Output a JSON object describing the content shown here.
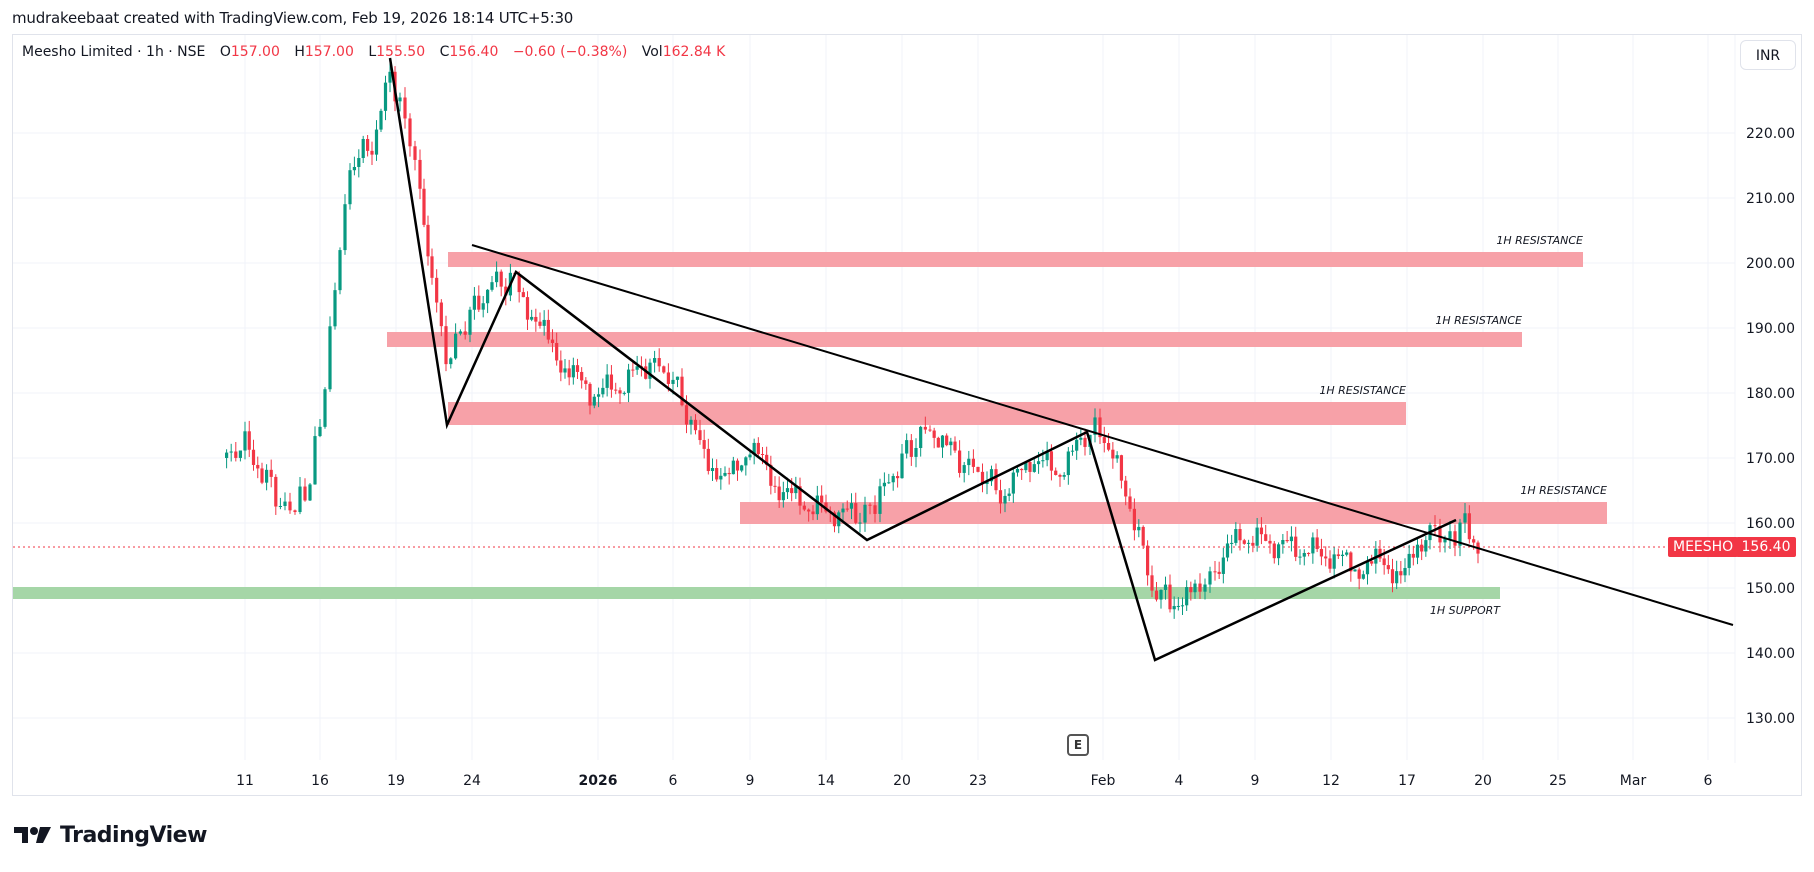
{
  "credit": "mudrakeebaat created with TradingView.com, Feb 19, 2026 18:14 UTC+5:30",
  "legend": {
    "symbol": "Meesho Limited · 1h · NSE",
    "open_label": "O",
    "open": "157.00",
    "high_label": "H",
    "high": "157.00",
    "low_label": "L",
    "low": "155.50",
    "close_label": "C",
    "close": "156.40",
    "change": "−0.60 (−0.38%)",
    "vol_label": "Vol",
    "vol": "162.84 K"
  },
  "currency": "INR",
  "price_tag": {
    "symbol": "MEESHO",
    "price": "156.40",
    "color": "#f23645"
  },
  "event_badge": "E",
  "logo": {
    "text": "TradingView"
  },
  "colors": {
    "up": "#089981",
    "down": "#f23645",
    "resistance": "#f7a1a8",
    "support": "#a5d6a7",
    "trendline": "#000000"
  },
  "zone_labels": {
    "r1": "1H RESISTANCE",
    "r2": "1H RESISTANCE",
    "r3": "1H RESISTANCE",
    "r4": "1H RESISTANCE",
    "s1": "1H SUPPORT"
  },
  "chart_data": {
    "type": "candlestick",
    "title": "Meesho Limited · 1h · NSE",
    "xlabel": "",
    "ylabel": "INR",
    "ylim": [
      124,
      232
    ],
    "grid": true,
    "x_ticks": [
      "11",
      "16",
      "19",
      "24",
      "2026",
      "6",
      "9",
      "14",
      "20",
      "23",
      "Feb",
      "4",
      "9",
      "12",
      "17",
      "20",
      "25",
      "Mar",
      "6"
    ],
    "y_ticks": [
      "220.00",
      "210.00",
      "200.00",
      "190.00",
      "180.00",
      "170.00",
      "160.00",
      "150.00",
      "140.00",
      "130.00"
    ],
    "last_price": 156.4,
    "ohlc_last": {
      "open": 157.0,
      "high": 157.0,
      "low": 155.5,
      "close": 156.4,
      "change": -0.6,
      "change_pct": -0.38,
      "volume": "162.84K"
    },
    "zones": [
      {
        "label": "1H RESISTANCE",
        "type": "resistance",
        "from": 199.2,
        "to": 201.5
      },
      {
        "label": "1H RESISTANCE",
        "type": "resistance",
        "from": 187.8,
        "to": 190.0
      },
      {
        "label": "1H RESISTANCE",
        "type": "resistance",
        "from": 175.6,
        "to": 178.6
      },
      {
        "label": "1H RESISTANCE",
        "type": "resistance",
        "from": 159.6,
        "to": 163.0
      },
      {
        "label": "1H SUPPORT",
        "type": "support",
        "from": 148.2,
        "to": 150.0
      }
    ],
    "trendlines": [
      {
        "name": "zigzag",
        "points": [
          [
            "Dec 19",
            230
          ],
          [
            "Dec 22",
            175
          ],
          [
            "Dec 26",
            198
          ],
          [
            "Jan 16",
            157.5
          ],
          [
            "Jan 30",
            173.5
          ],
          [
            "Feb 5",
            139
          ],
          [
            "Feb 18",
            160.5
          ]
        ]
      },
      {
        "name": "descending-resistance",
        "points": [
          [
            "Dec 24",
            202.5
          ],
          [
            "Mar 7",
            144.5
          ]
        ]
      }
    ],
    "approx_closes": [
      {
        "date": "Dec 10",
        "price": 170
      },
      {
        "date": "Dec 11",
        "price": 170
      },
      {
        "date": "Dec 12",
        "price": 164
      },
      {
        "date": "Dec 15",
        "price": 160
      },
      {
        "date": "Dec 16",
        "price": 170
      },
      {
        "date": "Dec 17",
        "price": 195
      },
      {
        "date": "Dec 18",
        "price": 216
      },
      {
        "date": "Dec 19",
        "price": 222
      },
      {
        "date": "Dec 22",
        "price": 190
      },
      {
        "date": "Dec 24",
        "price": 196
      },
      {
        "date": "Dec 26",
        "price": 197
      },
      {
        "date": "Dec 30",
        "price": 185
      },
      {
        "date": "Jan 2",
        "price": 180
      },
      {
        "date": "Jan 5",
        "price": 186
      },
      {
        "date": "Jan 6",
        "price": 182
      },
      {
        "date": "Jan 8",
        "price": 165
      },
      {
        "date": "Jan 9",
        "price": 172
      },
      {
        "date": "Jan 13",
        "price": 163
      },
      {
        "date": "Jan 16",
        "price": 161
      },
      {
        "date": "Jan 20",
        "price": 170
      },
      {
        "date": "Jan 22",
        "price": 174
      },
      {
        "date": "Jan 23",
        "price": 169
      },
      {
        "date": "Jan 27",
        "price": 164
      },
      {
        "date": "Jan 29",
        "price": 170
      },
      {
        "date": "Jan 30",
        "price": 174
      },
      {
        "date": "Feb 2",
        "price": 150
      },
      {
        "date": "Feb 4",
        "price": 148
      },
      {
        "date": "Feb 6",
        "price": 152
      },
      {
        "date": "Feb 9",
        "price": 158
      },
      {
        "date": "Feb 11",
        "price": 156
      },
      {
        "date": "Feb 13",
        "price": 154
      },
      {
        "date": "Feb 16",
        "price": 152
      },
      {
        "date": "Feb 17",
        "price": 159
      },
      {
        "date": "Feb 18",
        "price": 160
      },
      {
        "date": "Feb 19",
        "price": 156.4
      }
    ]
  }
}
